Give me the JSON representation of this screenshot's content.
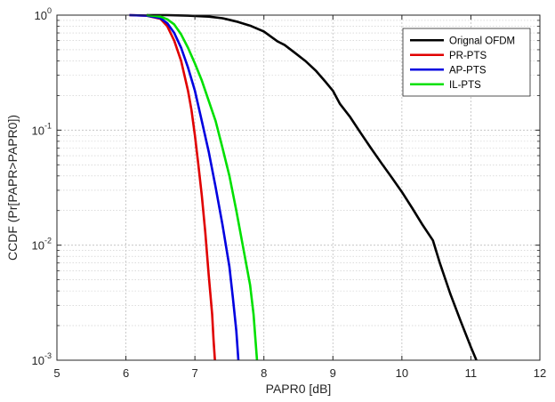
{
  "chart_data": {
    "type": "line",
    "title": "",
    "xlabel": "PAPR0 [dB]",
    "ylabel": "CCDF (Pr[PAPR>PAPR0])",
    "xlim": [
      5,
      12
    ],
    "ylim": [
      0.001,
      1
    ],
    "yscale": "log",
    "grid": true,
    "minor_grid": true,
    "legend_position": "top-right",
    "x_ticks": [
      "5",
      "6",
      "7",
      "8",
      "9",
      "10",
      "11",
      "12"
    ],
    "y_ticks": [
      {
        "base": "10",
        "exp": "0",
        "value": 1
      },
      {
        "base": "10",
        "exp": "-1",
        "value": 0.1
      },
      {
        "base": "10",
        "exp": "-2",
        "value": 0.01
      },
      {
        "base": "10",
        "exp": "-3",
        "value": 0.001
      }
    ],
    "series": [
      {
        "name": "Orignal OFDM",
        "color": "#000000",
        "points": [
          [
            6.3,
            1.0
          ],
          [
            6.6,
            1.0
          ],
          [
            6.9,
            0.99
          ],
          [
            7.2,
            0.97
          ],
          [
            7.4,
            0.94
          ],
          [
            7.6,
            0.88
          ],
          [
            7.8,
            0.81
          ],
          [
            8.0,
            0.72
          ],
          [
            8.2,
            0.59
          ],
          [
            8.3,
            0.55
          ],
          [
            8.45,
            0.47
          ],
          [
            8.6,
            0.4
          ],
          [
            8.75,
            0.33
          ],
          [
            8.9,
            0.26
          ],
          [
            9.0,
            0.22
          ],
          [
            9.1,
            0.17
          ],
          [
            9.25,
            0.13
          ],
          [
            9.4,
            0.095
          ],
          [
            9.55,
            0.07
          ],
          [
            9.7,
            0.052
          ],
          [
            9.85,
            0.039
          ],
          [
            10.0,
            0.029
          ],
          [
            10.15,
            0.021
          ],
          [
            10.3,
            0.015
          ],
          [
            10.45,
            0.011
          ],
          [
            10.55,
            0.007
          ],
          [
            10.7,
            0.0038
          ],
          [
            10.85,
            0.0022
          ],
          [
            11.0,
            0.0013
          ],
          [
            11.08,
            0.001
          ]
        ]
      },
      {
        "name": "PR-PTS",
        "color": "#e00000",
        "points": [
          [
            6.05,
            1.0
          ],
          [
            6.3,
            0.99
          ],
          [
            6.5,
            0.93
          ],
          [
            6.6,
            0.8
          ],
          [
            6.7,
            0.6
          ],
          [
            6.8,
            0.4
          ],
          [
            6.9,
            0.22
          ],
          [
            6.95,
            0.15
          ],
          [
            7.0,
            0.09
          ],
          [
            7.05,
            0.05
          ],
          [
            7.1,
            0.027
          ],
          [
            7.15,
            0.013
          ],
          [
            7.2,
            0.0055
          ],
          [
            7.25,
            0.0025
          ],
          [
            7.27,
            0.0015
          ],
          [
            7.29,
            0.001
          ]
        ]
      },
      {
        "name": "AP-PTS",
        "color": "#0000e0",
        "points": [
          [
            6.05,
            1.0
          ],
          [
            6.3,
            0.99
          ],
          [
            6.5,
            0.94
          ],
          [
            6.6,
            0.85
          ],
          [
            6.7,
            0.7
          ],
          [
            6.8,
            0.52
          ],
          [
            6.9,
            0.35
          ],
          [
            7.0,
            0.22
          ],
          [
            7.1,
            0.12
          ],
          [
            7.2,
            0.065
          ],
          [
            7.3,
            0.032
          ],
          [
            7.4,
            0.015
          ],
          [
            7.5,
            0.0065
          ],
          [
            7.55,
            0.0035
          ],
          [
            7.6,
            0.0018
          ],
          [
            7.63,
            0.001
          ]
        ]
      },
      {
        "name": "IL-PTS",
        "color": "#00e000",
        "points": [
          [
            6.3,
            1.0
          ],
          [
            6.5,
            0.97
          ],
          [
            6.6,
            0.92
          ],
          [
            6.7,
            0.83
          ],
          [
            6.8,
            0.68
          ],
          [
            6.9,
            0.52
          ],
          [
            7.0,
            0.38
          ],
          [
            7.1,
            0.27
          ],
          [
            7.2,
            0.18
          ],
          [
            7.3,
            0.12
          ],
          [
            7.4,
            0.07
          ],
          [
            7.5,
            0.04
          ],
          [
            7.6,
            0.02
          ],
          [
            7.7,
            0.0095
          ],
          [
            7.8,
            0.0045
          ],
          [
            7.85,
            0.0025
          ],
          [
            7.9,
            0.001
          ]
        ]
      }
    ]
  }
}
